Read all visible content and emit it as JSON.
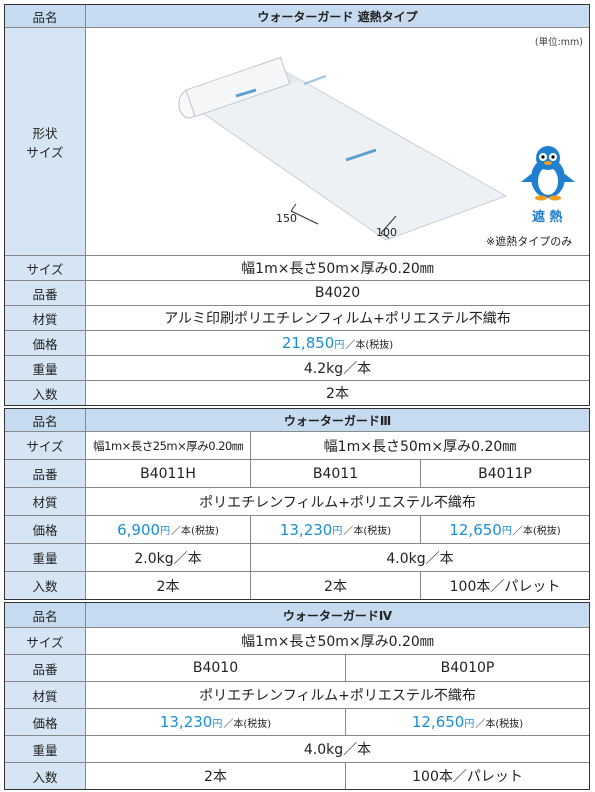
{
  "sections": [
    {
      "label": "品名",
      "name": "ウォーターガード 遮熱タイプ",
      "shape_label": [
        "形状",
        "サイズ"
      ],
      "unit_note": "(単位:mm)",
      "dims": [
        "150",
        "100"
      ],
      "badge": "遮 熱",
      "badge_note": "※遮熱タイプのみ",
      "rows": [
        {
          "label": "サイズ",
          "cells": [
            "幅1m×長さ50m×厚み0.20㎜"
          ]
        },
        {
          "label": "品番",
          "cells": [
            "B4020"
          ]
        },
        {
          "label": "材質",
          "cells": [
            "アルミ印刷ポリエチレンフィルム+ポリエステル不織布"
          ]
        },
        {
          "label": "価格",
          "cells": [
            {
              "price": "21,850",
              "unit": "円",
              "suffix": "／本(税抜)"
            }
          ]
        },
        {
          "label": "重量",
          "cells": [
            "4.2kg／本"
          ]
        },
        {
          "label": "入数",
          "cells": [
            "2本"
          ]
        }
      ]
    },
    {
      "label": "品名",
      "name": "ウォーターガードⅢ",
      "rows": [
        {
          "label": "サイズ",
          "cells": [
            "幅1m×長さ25m×厚み0.20㎜",
            "幅1m×長さ50m×厚み0.20㎜"
          ]
        },
        {
          "label": "品番",
          "cells": [
            "B4011H",
            "B4011",
            "B4011P"
          ]
        },
        {
          "label": "材質",
          "cells": [
            "ポリエチレンフィルム+ポリエステル不織布"
          ]
        },
        {
          "label": "価格",
          "cells": [
            {
              "price": "6,900",
              "unit": "円",
              "suffix": "／本(税抜)"
            },
            {
              "price": "13,230",
              "unit": "円",
              "suffix": "／本(税抜)"
            },
            {
              "price": "12,650",
              "unit": "円",
              "suffix": "／本(税抜)"
            }
          ]
        },
        {
          "label": "重量",
          "cells": [
            "2.0kg／本",
            "4.0kg／本"
          ]
        },
        {
          "label": "入数",
          "cells": [
            "2本",
            "2本",
            "100本／パレット"
          ]
        }
      ]
    },
    {
      "label": "品名",
      "name": "ウォーターガードⅣ",
      "rows": [
        {
          "label": "サイズ",
          "cells": [
            "幅1m×長さ50m×厚み0.20㎜"
          ]
        },
        {
          "label": "品番",
          "cells": [
            "B4010",
            "B4010P"
          ]
        },
        {
          "label": "材質",
          "cells": [
            "ポリエチレンフィルム+ポリエステル不織布"
          ]
        },
        {
          "label": "価格",
          "cells": [
            {
              "price": "13,230",
              "unit": "円",
              "suffix": "／本(税抜)"
            },
            {
              "price": "12,650",
              "unit": "円",
              "suffix": "／本(税抜)"
            }
          ]
        },
        {
          "label": "重量",
          "cells": [
            "4.0kg／本"
          ]
        },
        {
          "label": "入数",
          "cells": [
            "2本",
            "100本／パレット"
          ]
        }
      ]
    }
  ]
}
